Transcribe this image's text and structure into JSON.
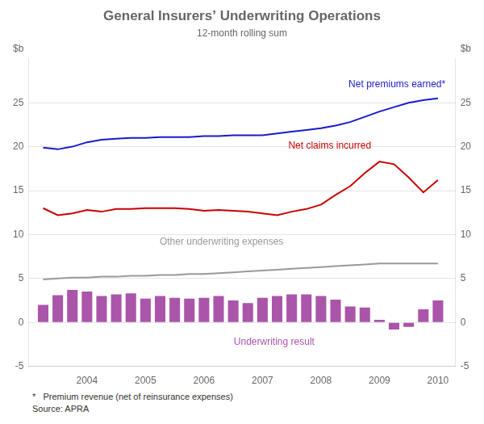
{
  "chart_data": {
    "type": "line",
    "title": "General Insurers’ Underwriting Operations",
    "subtitle": "12-month rolling sum",
    "ylabel": "$b",
    "y2label": "$b",
    "footnotes": [
      "*   Premium revenue (net of reinsurance expenses)",
      "Source: APRA"
    ],
    "x": [
      2003.25,
      2003.5,
      2003.75,
      2004.0,
      2004.25,
      2004.5,
      2004.75,
      2005.0,
      2005.25,
      2005.5,
      2005.75,
      2006.0,
      2006.25,
      2006.5,
      2006.75,
      2007.0,
      2007.25,
      2007.5,
      2007.75,
      2008.0,
      2008.25,
      2008.5,
      2008.75,
      2009.0,
      2009.25,
      2009.5,
      2009.75,
      2010.0
    ],
    "series": [
      {
        "type": "line",
        "color": "#1a1acd",
        "values": [
          19.9,
          19.7,
          20.0,
          20.5,
          20.8,
          20.9,
          21.0,
          21.0,
          21.1,
          21.1,
          21.1,
          21.2,
          21.2,
          21.3,
          21.3,
          21.3,
          21.5,
          21.7,
          21.9,
          22.1,
          22.4,
          22.8,
          23.4,
          24.0,
          24.5,
          25.0,
          25.3,
          25.5
        ]
      },
      {
        "type": "line",
        "color": "#cc0000",
        "values": [
          13.0,
          12.2,
          12.4,
          12.8,
          12.6,
          12.9,
          12.9,
          13.0,
          13.0,
          13.0,
          12.9,
          12.7,
          12.8,
          12.7,
          12.6,
          12.4,
          12.2,
          12.6,
          12.9,
          13.4,
          14.5,
          15.5,
          17.0,
          18.3,
          18.0,
          16.5,
          14.8,
          16.2
        ]
      },
      {
        "type": "line",
        "color": "#999999",
        "values": [
          4.9,
          5.0,
          5.1,
          5.1,
          5.2,
          5.2,
          5.3,
          5.3,
          5.4,
          5.4,
          5.5,
          5.5,
          5.6,
          5.7,
          5.8,
          5.9,
          6.0,
          6.1,
          6.2,
          6.3,
          6.4,
          6.5,
          6.6,
          6.7,
          6.7,
          6.7,
          6.7,
          6.7
        ]
      },
      {
        "type": "bar",
        "color": "#aa55aa",
        "values": [
          2.0,
          3.1,
          3.7,
          3.5,
          3.0,
          3.2,
          3.3,
          2.7,
          3.0,
          2.8,
          2.7,
          2.8,
          3.0,
          2.5,
          2.2,
          2.8,
          3.0,
          3.2,
          3.2,
          3.0,
          2.6,
          1.8,
          1.7,
          0.3,
          -0.8,
          -0.5,
          1.5,
          2.5
        ]
      }
    ],
    "xlim": [
      2003.0,
      2010.3
    ],
    "xticks": [
      2004,
      2005,
      2006,
      2007,
      2008,
      2009,
      2010
    ],
    "ylim": [
      -5,
      30
    ],
    "yticks": [
      -5,
      0,
      5,
      10,
      15,
      20,
      25
    ],
    "y2lim": [
      -5,
      30
    ],
    "y2ticks": [
      -5,
      0,
      5,
      10,
      15,
      20,
      25
    ],
    "grid": true,
    "annotations": [
      {
        "text": "Net premiums earned*",
        "x": 2009.3,
        "y": 26.5,
        "color": "#1a1acd"
      },
      {
        "text": "Net claims incurred",
        "x": 2008.15,
        "y": 19.5,
        "color": "#cc0000"
      },
      {
        "text": "Other underwriting expenses",
        "x": 2006.3,
        "y": 8.6,
        "color": "#999999"
      },
      {
        "text": "Underwriting result",
        "x": 2007.2,
        "y": -2.8,
        "color": "#aa55aa"
      }
    ]
  }
}
